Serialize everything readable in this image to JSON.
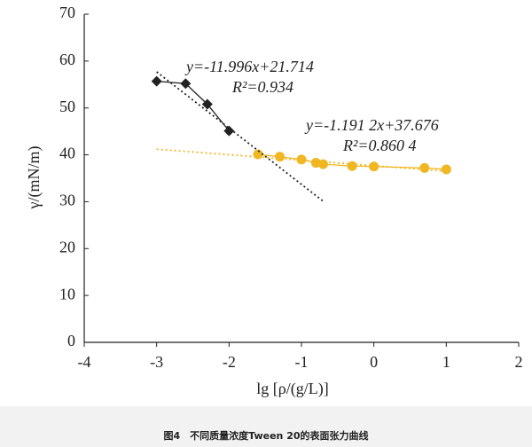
{
  "chart_data": {
    "type": "line",
    "xlabel": "lg [ρ/(g/L)]",
    "ylabel": "γ/(mN/m)",
    "xlim": [
      -4,
      2
    ],
    "xticks": [
      -4,
      -3,
      -2,
      -1,
      0,
      1,
      2
    ],
    "ylim": [
      0,
      70
    ],
    "yticks": [
      0,
      10,
      20,
      30,
      40,
      50,
      60,
      70
    ],
    "series": [
      {
        "color": "#222222",
        "marker": "diamond",
        "x": [
          -3,
          -2.6,
          -2.3,
          -2
        ],
        "values": [
          55.7,
          55.2,
          50.8,
          45.1
        ]
      },
      {
        "color": "#f0b722",
        "marker": "circle",
        "x": [
          -1.6,
          -1.3,
          -1,
          -0.8,
          -0.7,
          -0.3,
          0,
          0.7,
          1
        ],
        "values": [
          40.1,
          39.6,
          39.0,
          38.3,
          38.0,
          37.6,
          37.5,
          37.2,
          36.9
        ]
      },
      {
        "color": "#222222",
        "style": "dotted",
        "x": [
          -3,
          -0.7
        ],
        "values": [
          57.7,
          30.1
        ]
      },
      {
        "color": "#f0b722",
        "style": "dotted",
        "x": [
          -3,
          1
        ],
        "values": [
          41.2,
          36.5
        ]
      }
    ],
    "annotations": [
      "y=-11.996x+21.714",
      "R²=0.934",
      "y=-1.191 2x+37.676",
      "R²=0.860 4"
    ],
    "caption": "图4　不同质量浓度Tween 20的表面张力曲线"
  }
}
